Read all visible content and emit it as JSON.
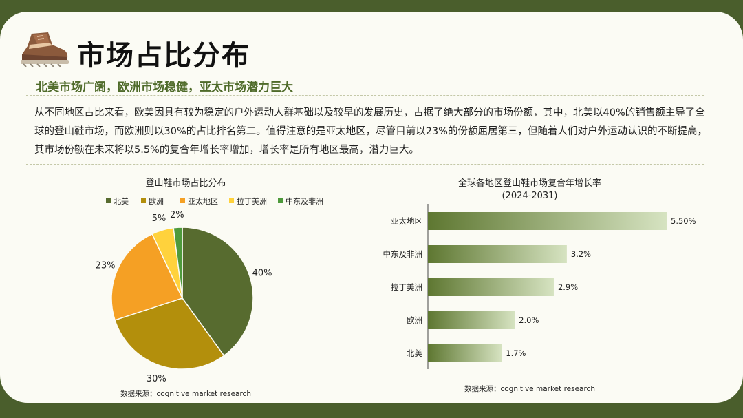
{
  "header": {
    "title": "市场占比分布",
    "subtitle": "北美市场广阔，欧洲市场稳健，亚太市场潜力巨大",
    "paragraph": "从不同地区占比来看，欧美因具有较为稳定的户外运动人群基础以及较早的发展历史，占据了绝大部分的市场份额，其中，北美以40%的销售额主导了全球的登山鞋市场，而欧洲则以30%的占比排名第二。值得注意的是亚太地区，尽管目前以23%的份额屈居第三，但随着人们对户外运动认识的不断提高，其市场份额在未来将以5.5%的复合年增长率增加，增长率是所有地区最高，潜力巨大。"
  },
  "icons": {
    "logo": "hiking-boot-icon"
  },
  "chart_data": [
    {
      "type": "pie",
      "title": "登山鞋市场占比分布",
      "legend_position": "top",
      "labels": [
        "北美",
        "欧洲",
        "亚太地区",
        "拉丁美洲",
        "中东及非洲"
      ],
      "values": [
        40,
        30,
        23,
        5,
        2
      ],
      "value_labels": [
        "40%",
        "30%",
        "23%",
        "5%",
        "2%"
      ],
      "colors": [
        "#576b2f",
        "#b38f0c",
        "#f5a024",
        "#ffd23c",
        "#4e9a3c"
      ],
      "source": "数据来源：cognitive market research"
    },
    {
      "type": "bar",
      "orientation": "horizontal",
      "title": "全球各地区登山鞋市场复合年增长率",
      "subtitle": "(2024-2031)",
      "categories": [
        "亚太地区",
        "中东及非洲",
        "拉丁美洲",
        "欧洲",
        "北美"
      ],
      "values": [
        5.5,
        3.2,
        2.9,
        2.0,
        1.7
      ],
      "value_labels": [
        "5.50%",
        "3.2%",
        "2.9%",
        "2.0%",
        "1.7%"
      ],
      "xlim": [
        0,
        5.5
      ],
      "grid": false,
      "colors": {
        "bar_start": "#5e7731",
        "bar_end": "#d6e3c1"
      },
      "source": "数据来源：cognitive market research"
    }
  ]
}
